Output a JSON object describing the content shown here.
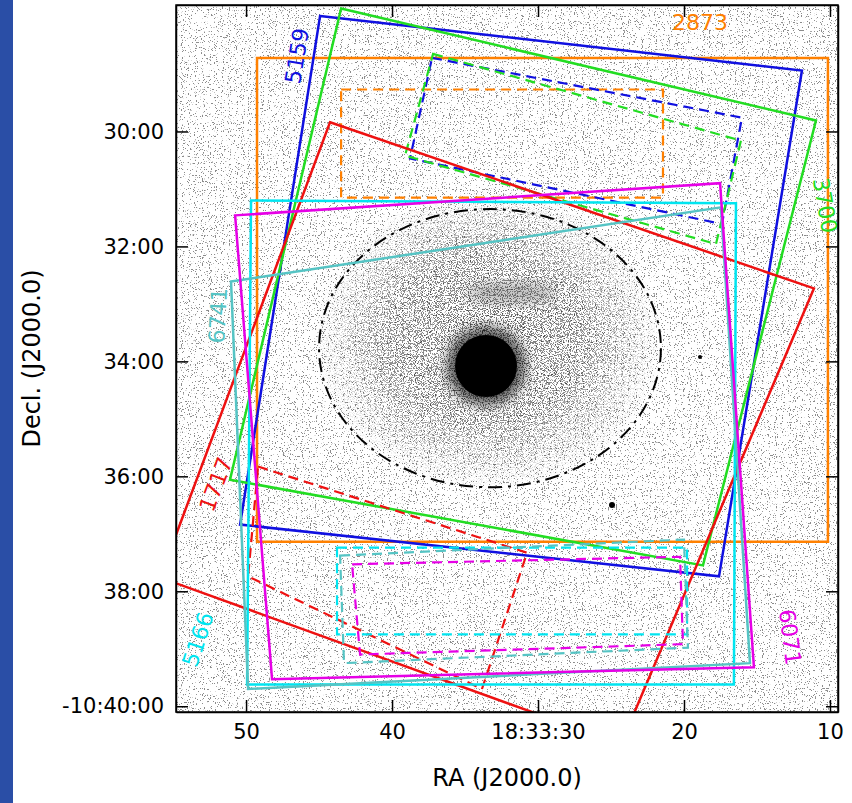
{
  "chart_data": {
    "type": "footprint",
    "x_label": "RA (J2000.0)",
    "y_label": "Decl. (J2000.0)",
    "xlim": [
      54.8,
      9.45
    ],
    "ylim": [
      27.8,
      40.1
    ],
    "xticks": [
      50,
      40,
      {
        "value": 30,
        "label": "18:33:30"
      },
      20,
      10
    ],
    "yticks": [
      {
        "value": 30,
        "label": "30:00"
      },
      {
        "value": 32,
        "label": "32:00"
      },
      {
        "value": 34,
        "label": "34:00"
      },
      {
        "value": 36,
        "label": "36:00"
      },
      {
        "value": 38,
        "label": "38:00"
      },
      {
        "value": 40,
        "label": "-10:40:00"
      }
    ],
    "region": {
      "ra": 33.29,
      "dec": 33.77,
      "radius_ra": 11.71,
      "radius_dec": 2.42,
      "line_style": "dashdot"
    },
    "series": [
      {
        "name": "2873",
        "color": "#ff8000",
        "field": [
          [
            49.25,
            28.72
          ],
          [
            10.14,
            28.72
          ],
          [
            10.14,
            37.14
          ],
          [
            49.25,
            37.14
          ]
        ],
        "window": [
          [
            43.49,
            29.27
          ],
          [
            21.44,
            29.27
          ],
          [
            21.44,
            31.15
          ],
          [
            43.49,
            31.15
          ]
        ]
      },
      {
        "name": "5159",
        "color": "#1010e0",
        "field": [
          [
            44.93,
            27.99
          ],
          [
            11.92,
            28.94
          ],
          [
            17.6,
            37.74
          ],
          [
            50.41,
            36.84
          ]
        ],
        "window": [
          [
            37.26,
            28.72
          ],
          [
            16.03,
            29.76
          ],
          [
            17.4,
            31.61
          ],
          [
            38.77,
            30.47
          ]
        ]
      },
      {
        "name": "3700",
        "color": "#22dd22",
        "field": [
          [
            43.49,
            27.86
          ],
          [
            10.96,
            29.81
          ],
          [
            18.7,
            37.55
          ],
          [
            51.1,
            36.06
          ]
        ],
        "window": [
          [
            37.19,
            28.65
          ],
          [
            16.1,
            30.16
          ],
          [
            17.81,
            31.96
          ],
          [
            39.11,
            30.42
          ]
        ]
      },
      {
        "name": "1717",
        "color": "#ee1111",
        "field": [
          [
            44.25,
            29.84
          ],
          [
            11.1,
            32.73
          ],
          [
            24.32,
            40.66
          ],
          [
            55.89,
            37.76
          ]
        ],
        "window": [
          [
            49.18,
            35.83
          ],
          [
            30.75,
            37.33
          ],
          [
            33.84,
            39.7
          ],
          [
            49.86,
            37.74
          ]
        ]
      },
      {
        "name": "5166",
        "color": "#00e5f0",
        "field": [
          [
            49.66,
            31.2
          ],
          [
            16.44,
            31.25
          ],
          [
            16.58,
            39.62
          ],
          [
            49.93,
            39.62
          ]
        ],
        "window": [
          [
            43.77,
            37.24
          ],
          [
            19.79,
            37.24
          ],
          [
            19.79,
            38.75
          ],
          [
            43.77,
            38.75
          ]
        ]
      },
      {
        "name": "6741",
        "color": "#55c4c4",
        "field": [
          [
            51.03,
            32.61
          ],
          [
            17.47,
            31.32
          ],
          [
            15.48,
            39.25
          ],
          [
            49.86,
            39.7
          ]
        ],
        "window": [
          [
            43.56,
            37.38
          ],
          [
            20.0,
            37.1
          ],
          [
            19.73,
            38.98
          ],
          [
            43.29,
            39.25
          ]
        ]
      },
      {
        "name": "6071",
        "color": "#e600e6",
        "field": [
          [
            50.75,
            31.46
          ],
          [
            17.53,
            30.9
          ],
          [
            15.21,
            39.32
          ],
          [
            48.22,
            39.53
          ]
        ],
        "window": [
          [
            42.74,
            37.53
          ],
          [
            20.27,
            37.4
          ],
          [
            20.07,
            38.92
          ],
          [
            42.19,
            39.1
          ]
        ]
      }
    ]
  }
}
